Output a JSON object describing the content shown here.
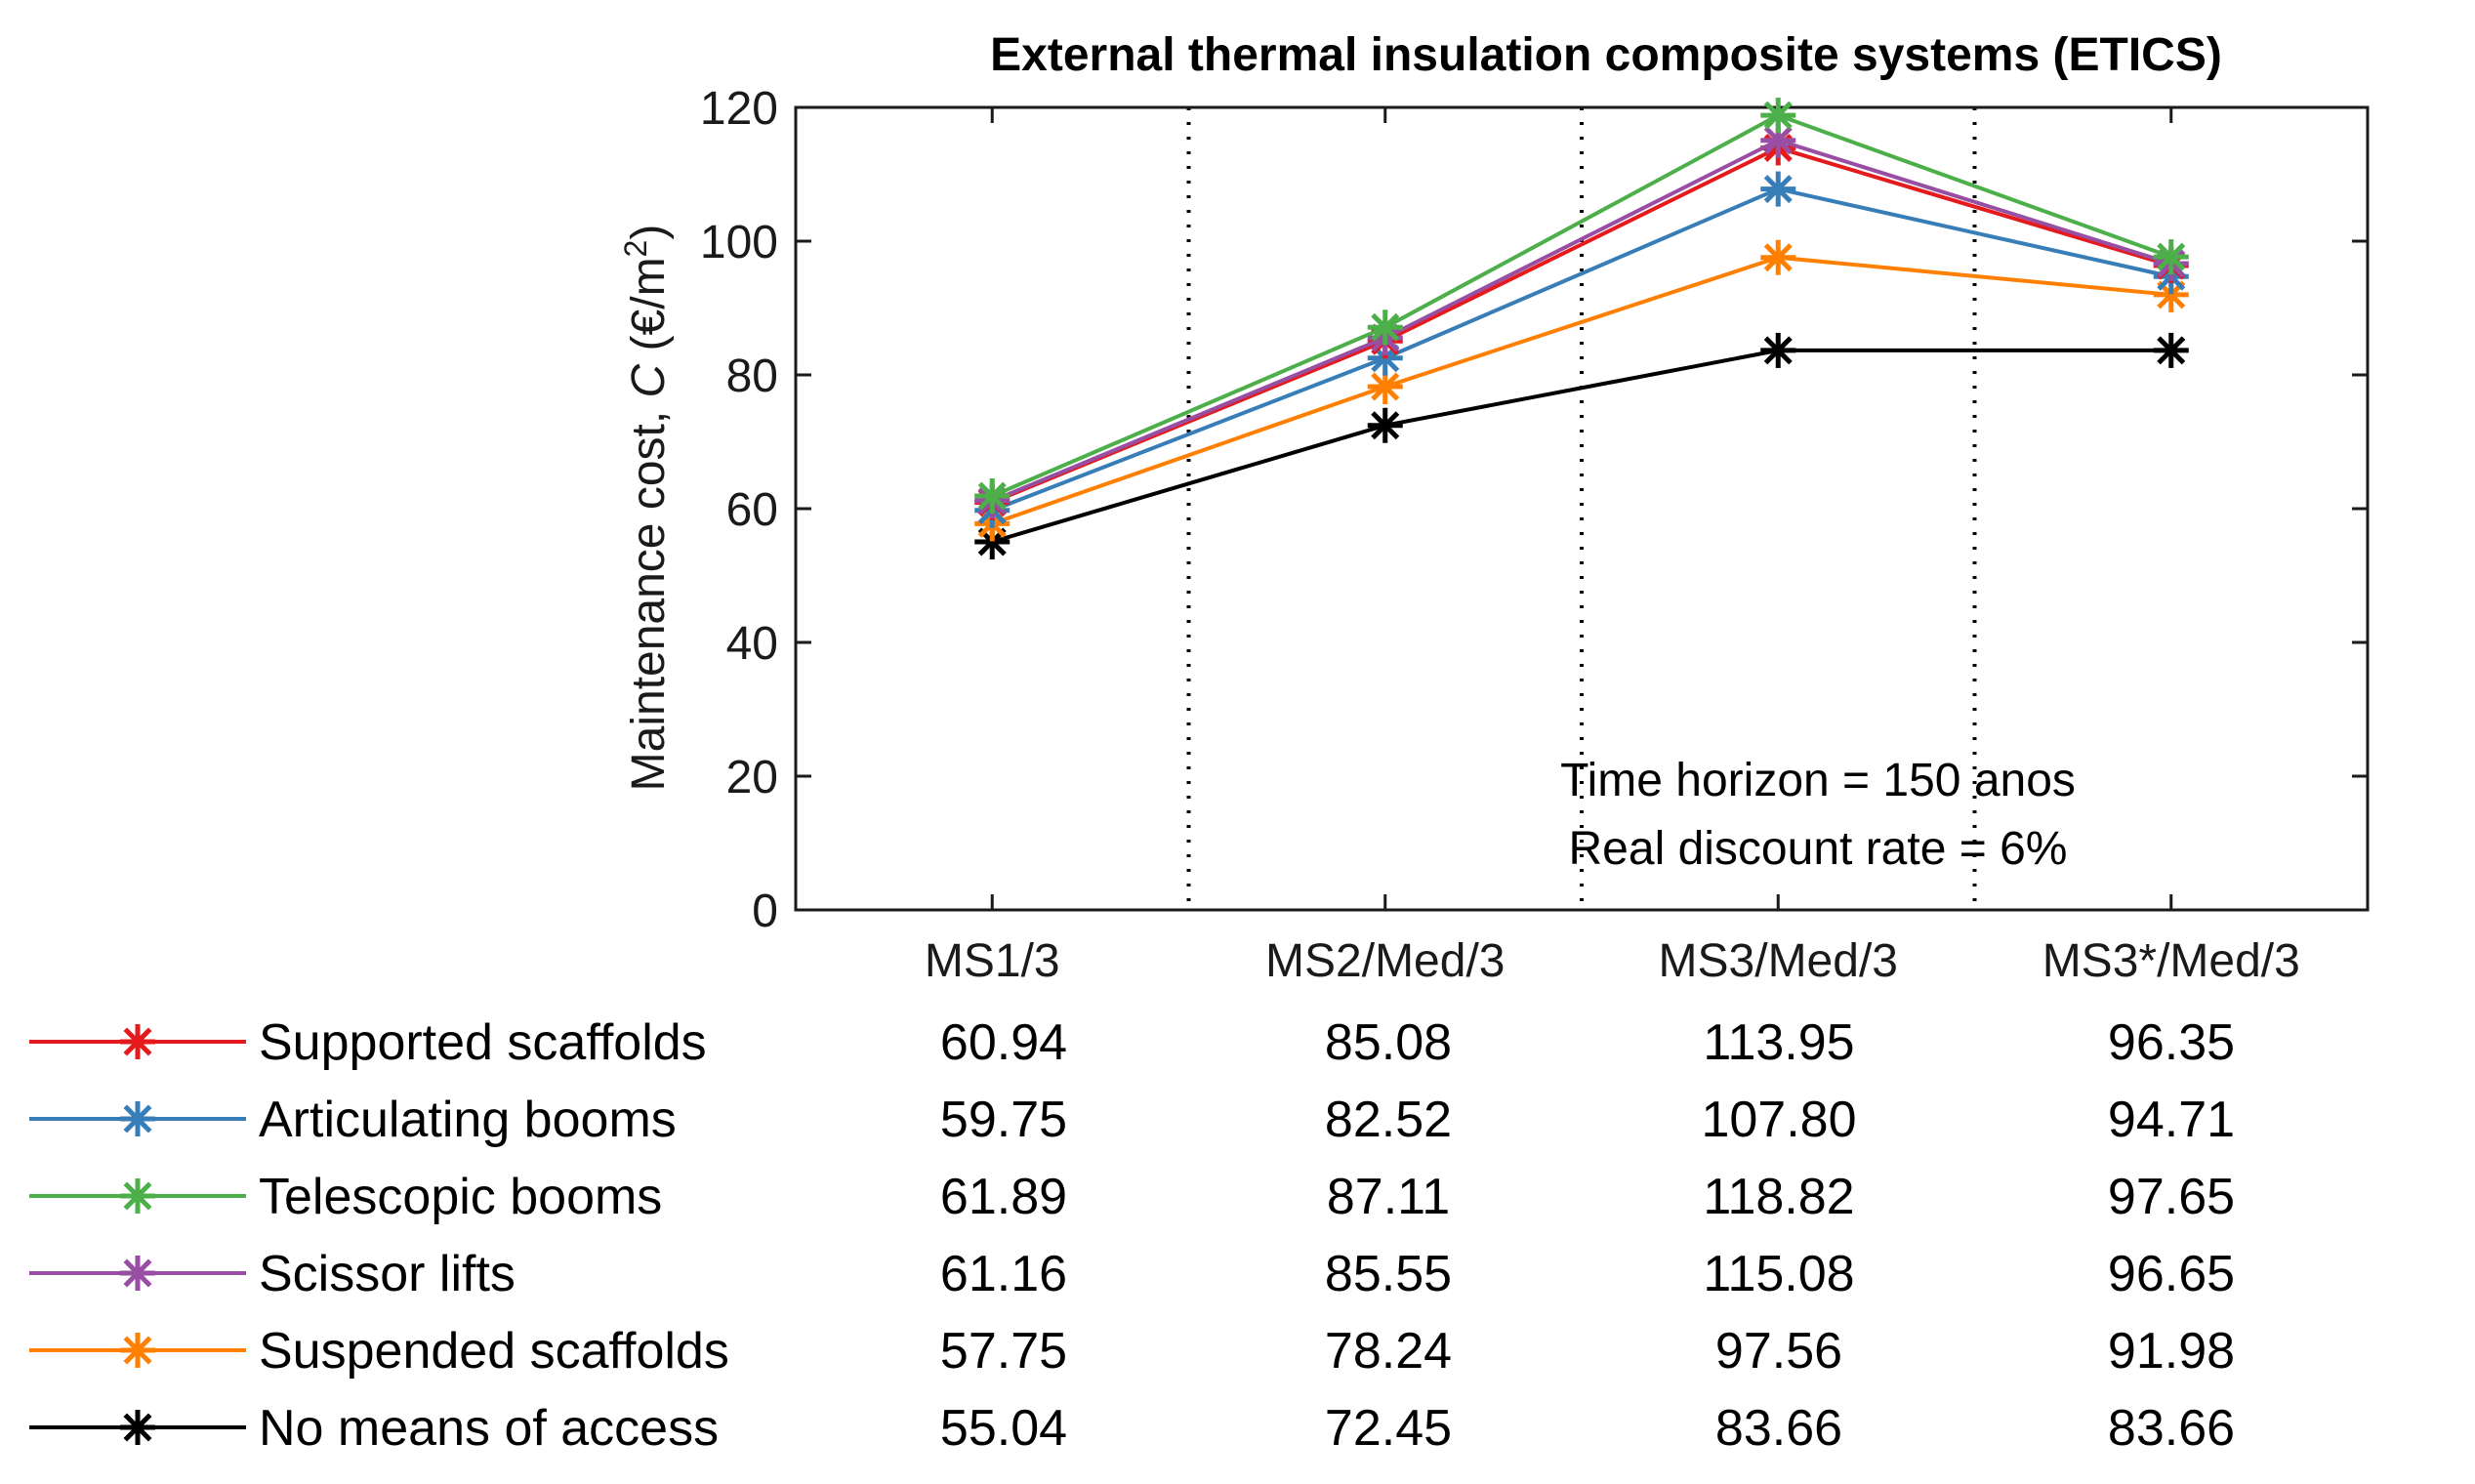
{
  "chart_data": {
    "type": "line",
    "title": "External thermal insulation composite systems (ETICS)",
    "xlabel": "",
    "ylabel_main": "Maintenance cost, ",
    "ylabel_var": "C",
    "ylabel_unit": " (€/m",
    "ylabel_sup": "2",
    "ylabel_close": ")",
    "ylim": [
      0,
      120
    ],
    "yticks": [
      "0",
      "20",
      "40",
      "60",
      "80",
      "100",
      "120"
    ],
    "categories": [
      "MS1/3",
      "MS2/Med/3",
      "MS3/Med/3",
      "MS3*/Med/3"
    ],
    "annotations": [
      "Time horizon = 150 anos",
      "Real discount rate = 6%"
    ],
    "series": [
      {
        "name": "Supported scaffolds",
        "color": "#e41a1c",
        "values": [
          60.94,
          85.08,
          113.95,
          96.35
        ],
        "labels": [
          "60.94",
          "85.08",
          "113.95",
          "96.35"
        ]
      },
      {
        "name": "Articulating booms",
        "color": "#377eb8",
        "values": [
          59.75,
          82.52,
          107.8,
          94.71
        ],
        "labels": [
          "59.75",
          "82.52",
          "107.80",
          "94.71"
        ]
      },
      {
        "name": "Telescopic booms",
        "color": "#4daf4a",
        "values": [
          61.89,
          87.11,
          118.82,
          97.65
        ],
        "labels": [
          "61.89",
          "87.11",
          "118.82",
          "97.65"
        ]
      },
      {
        "name": "Scissor lifts",
        "color": "#984ea3",
        "values": [
          61.16,
          85.55,
          115.08,
          96.65
        ],
        "labels": [
          "61.16",
          "85.55",
          "115.08",
          "96.65"
        ]
      },
      {
        "name": "Suspended scaffolds",
        "color": "#ff7f00",
        "values": [
          57.75,
          78.24,
          97.56,
          91.98
        ],
        "labels": [
          "57.75",
          "78.24",
          "97.56",
          "91.98"
        ]
      },
      {
        "name": "No means of access",
        "color": "#000000",
        "values": [
          55.04,
          72.45,
          83.66,
          83.66
        ],
        "labels": [
          "55.04",
          "72.45",
          "83.66",
          "83.66"
        ]
      }
    ]
  }
}
